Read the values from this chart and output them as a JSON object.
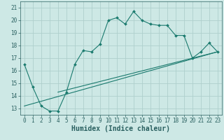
{
  "xlabel": "Humidex (Indice chaleur)",
  "xlim": [
    -0.5,
    23.5
  ],
  "ylim": [
    12.5,
    21.5
  ],
  "xticks": [
    0,
    1,
    2,
    3,
    4,
    5,
    6,
    7,
    8,
    9,
    10,
    11,
    12,
    13,
    14,
    15,
    16,
    17,
    18,
    19,
    20,
    21,
    22,
    23
  ],
  "yticks": [
    13,
    14,
    15,
    16,
    17,
    18,
    19,
    20,
    21
  ],
  "background_color": "#cde8e5",
  "grid_color": "#aecfcc",
  "line_color": "#1a7a6e",
  "main_x": [
    0,
    1,
    2,
    3,
    4,
    5,
    6,
    7,
    8,
    9,
    10,
    11,
    12,
    13,
    14,
    15,
    16,
    17,
    18,
    19,
    20,
    21,
    22,
    23
  ],
  "main_y": [
    16.5,
    14.7,
    13.2,
    12.8,
    12.8,
    14.3,
    16.5,
    17.6,
    17.5,
    18.1,
    20.0,
    20.2,
    19.7,
    20.7,
    20.0,
    19.7,
    19.6,
    19.6,
    18.8,
    18.8,
    17.0,
    17.5,
    18.2,
    17.5
  ],
  "trend1_x": [
    0,
    23
  ],
  "trend1_y": [
    13.2,
    17.5
  ],
  "trend2_x": [
    4,
    23
  ],
  "trend2_y": [
    14.3,
    17.5
  ],
  "font_color": "#2a6060",
  "tick_fontsize": 5.5,
  "label_fontsize": 7
}
